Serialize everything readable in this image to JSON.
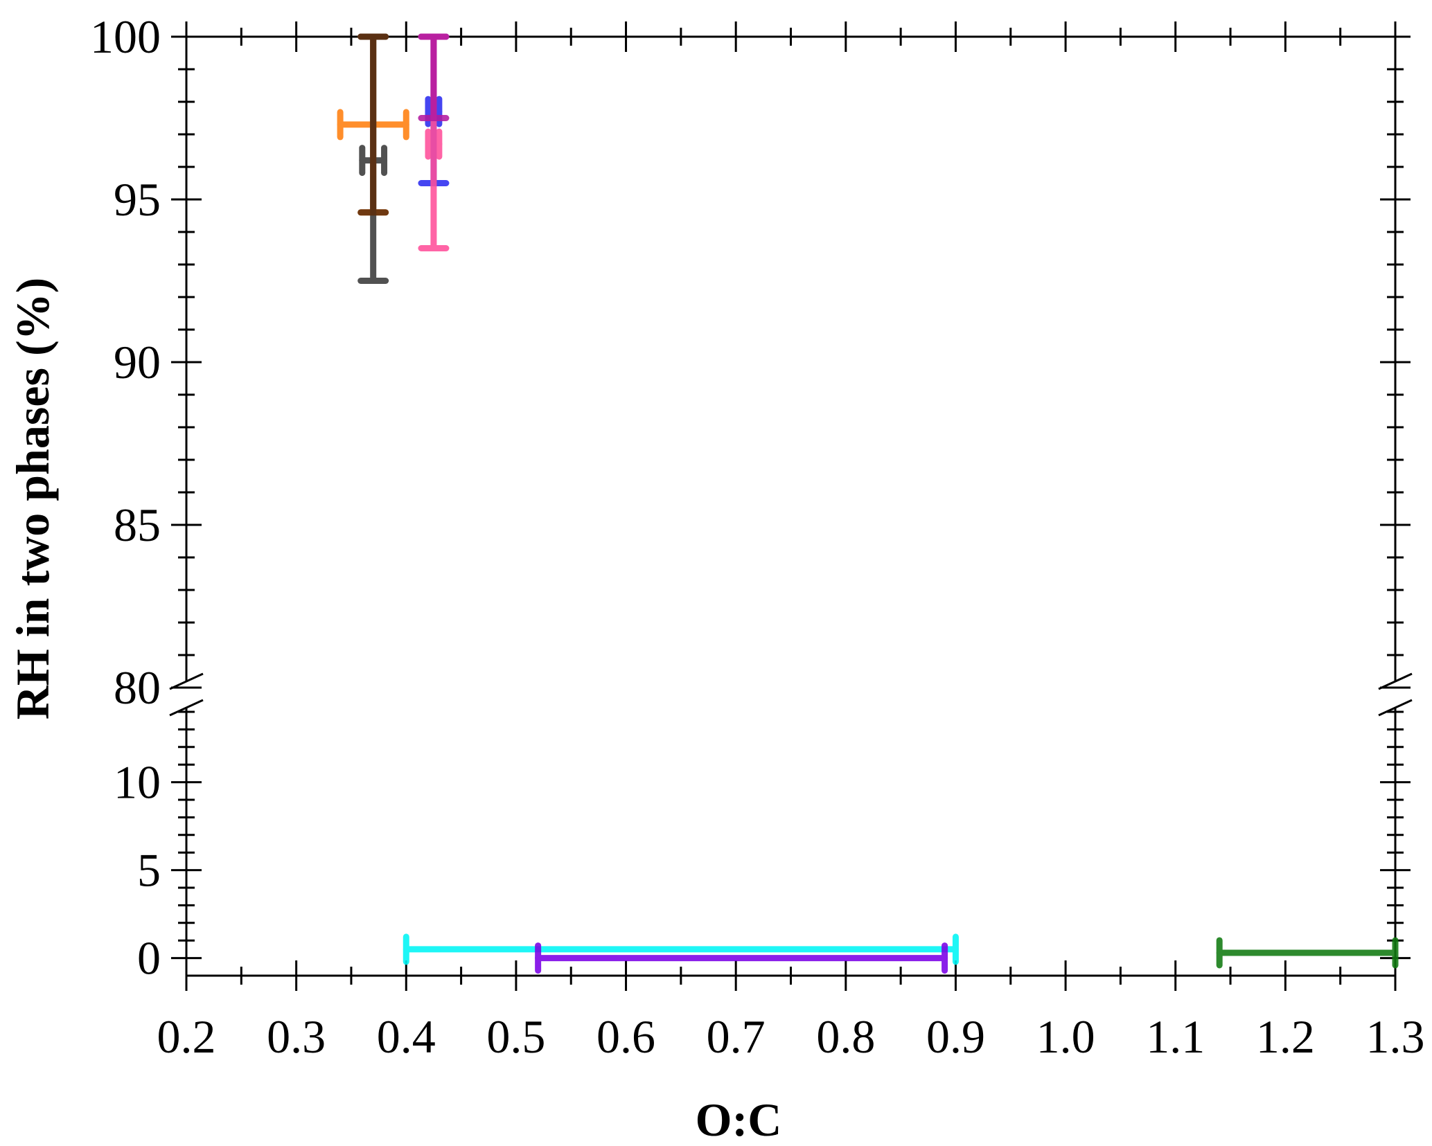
{
  "chart_data": {
    "type": "scatter",
    "title": "",
    "xlabel": "O:C",
    "ylabel": "RH in two phases  (%)",
    "xlim": [
      0.2,
      1.3
    ],
    "ylim_lower": [
      -1,
      14
    ],
    "ylim_upper": [
      80,
      100
    ],
    "axis_break": "y between 14 and 80",
    "x_ticks": [
      "0.2",
      "0.3",
      "0.4",
      "0.5",
      "0.6",
      "0.7",
      "0.8",
      "0.9",
      "1.0",
      "1.1",
      "1.2",
      "1.3"
    ],
    "y_ticks_upper": [
      "80",
      "85",
      "90",
      "95",
      "100"
    ],
    "y_ticks_lower": [
      "0",
      "5",
      "10"
    ],
    "grid": false,
    "legend": "none",
    "series": [
      {
        "color": "#ff7f0e",
        "x": 0.37,
        "y": 97.3,
        "x_err": [
          0.34,
          0.4
        ],
        "y_err": [
          94.6,
          100
        ]
      },
      {
        "color": "#3a3a3a",
        "x": 0.37,
        "y": 96.2,
        "x_err": [
          0.36,
          0.38
        ],
        "y_err": [
          92.5,
          100
        ]
      },
      {
        "color": "#5c2e0e",
        "x": 0.37,
        "y": 100,
        "y_err": [
          94.6,
          100
        ]
      },
      {
        "color": "#2c2cf0",
        "x": 0.425,
        "y": 97.7,
        "x_err": [
          0.42,
          0.43
        ],
        "y_err": [
          95.5,
          100
        ]
      },
      {
        "color": "#ff4f9a",
        "x": 0.425,
        "y": 96.7,
        "x_err": [
          0.42,
          0.43
        ],
        "y_err": [
          93.5,
          100
        ]
      },
      {
        "color": "#b31aa0",
        "x": 0.425,
        "y": 100,
        "y_err": [
          97.5,
          100
        ]
      },
      {
        "color": "#00f5f5",
        "x": 0.65,
        "y": 0.5,
        "x_err": [
          0.4,
          0.9
        ]
      },
      {
        "color": "#7a00e6",
        "x": 0.705,
        "y": 0,
        "x_err": [
          0.52,
          0.89
        ]
      },
      {
        "color": "#117a11",
        "x": 1.22,
        "y": 0.3,
        "x_err": [
          1.14,
          1.3
        ]
      }
    ]
  }
}
